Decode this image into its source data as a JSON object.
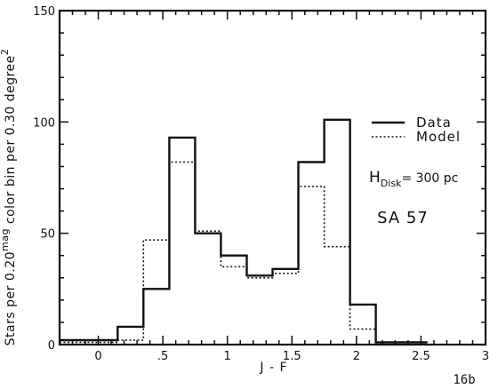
{
  "figure_label": "16b",
  "chart_data": {
    "type": "step",
    "xlabel": "J - F",
    "ylabel_parts": {
      "a": "Stars per 0.20",
      "sup1": "mag",
      "b": " color bin per 0.30 degree",
      "sup2": "2"
    },
    "xlim": [
      -0.3,
      3.0
    ],
    "ylim": [
      0,
      150
    ],
    "x_ticks": [
      0,
      0.5,
      1,
      1.5,
      2,
      2.5,
      3
    ],
    "x_tick_labels": [
      "0",
      ".5",
      "1",
      "1.5",
      "2",
      "2.5",
      "3"
    ],
    "y_ticks": [
      0,
      50,
      100,
      150
    ],
    "y_tick_labels": [
      "0",
      "50",
      "100",
      "150"
    ],
    "bin_edges": [
      -0.35,
      -0.05,
      0.15,
      0.35,
      0.55,
      0.75,
      0.95,
      1.15,
      1.35,
      1.55,
      1.75,
      1.95,
      2.15,
      2.35,
      2.55
    ],
    "series": [
      {
        "name": "Data",
        "style": "solid",
        "color": "#111111",
        "values": [
          2,
          2,
          8,
          25,
          93,
          50,
          40,
          31,
          34,
          82,
          101,
          18,
          1,
          1
        ]
      },
      {
        "name": "Model",
        "style": "dotted",
        "color": "#111111",
        "values": [
          1,
          1,
          2,
          47,
          82,
          51,
          35,
          30,
          32,
          71,
          44,
          7,
          1,
          1
        ]
      }
    ],
    "legend_position": "right",
    "annotations": {
      "h_main": "H",
      "h_sub": "Disk",
      "h_value": "= 300 pc",
      "field": "SA 57"
    }
  }
}
